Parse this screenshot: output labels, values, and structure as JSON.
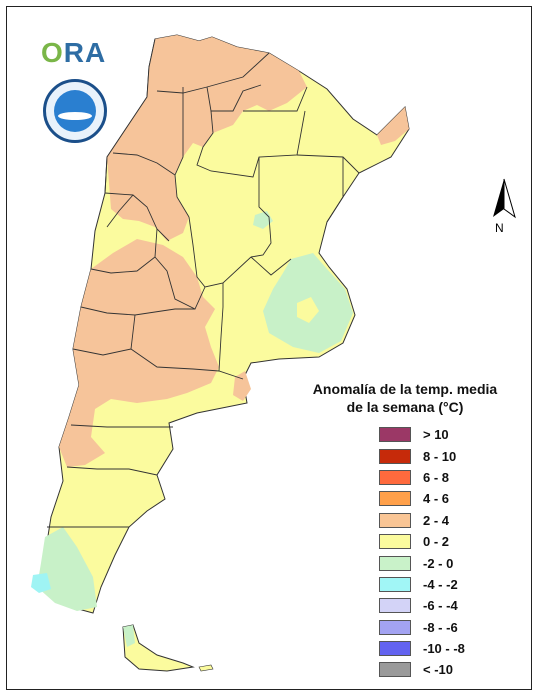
{
  "header": {
    "logo_text_o": "O",
    "logo_text_ra": "RA"
  },
  "map": {
    "north_label": "N",
    "colors": {
      "anom_2_4": "#f6c49a",
      "anom_0_2": "#fbfb9e",
      "anom_m2_0": "#c8f1c8",
      "anom_m4_m2": "#9ff4f4",
      "ocean": "#ffffff",
      "border": "#333333"
    }
  },
  "legend": {
    "title_line1": "Anomalía de la temp. media",
    "title_line2": "de la semana (°C)",
    "items": [
      {
        "label": "> 10",
        "color": "#9b3866"
      },
      {
        "label": "8 - 10",
        "color": "#c62a0a"
      },
      {
        "label": "6 - 8",
        "color": "#ff6a3d"
      },
      {
        "label": "4 - 6",
        "color": "#ffa04a"
      },
      {
        "label": "2 - 4",
        "color": "#f9c595"
      },
      {
        "label": "0 - 2",
        "color": "#fbfb9e"
      },
      {
        "label": "-2 - 0",
        "color": "#c9f2c9"
      },
      {
        "label": "-4 - -2",
        "color": "#a1f6f6"
      },
      {
        "label": "-6 - -4",
        "color": "#d3d3f7"
      },
      {
        "label": "-8 - -6",
        "color": "#a3a3f2"
      },
      {
        "label": "-10 - -8",
        "color": "#6363f0"
      },
      {
        "label": "< -10",
        "color": "#9a9a9a"
      }
    ]
  }
}
